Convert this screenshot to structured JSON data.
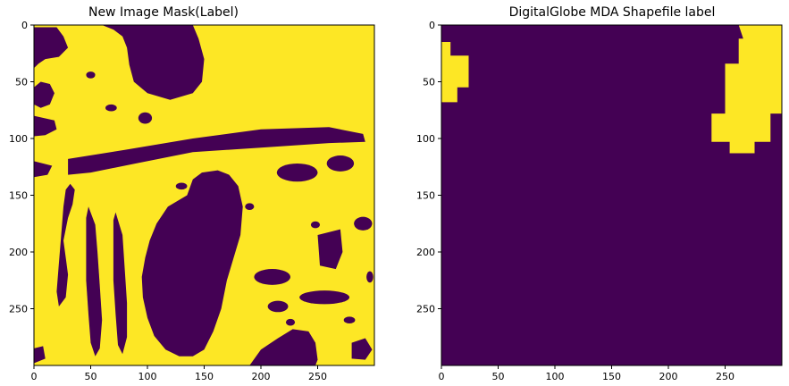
{
  "chart_data": [
    {
      "type": "heatmap",
      "title": "New Image Mask(Label)",
      "xlabel": "",
      "ylabel": "",
      "xlim": [
        0,
        300
      ],
      "ylim": [
        300,
        0
      ],
      "x_ticks": [
        0,
        50,
        100,
        150,
        200,
        250
      ],
      "y_ticks": [
        0,
        50,
        100,
        150,
        200,
        250
      ],
      "colormap": {
        "low": "#440154",
        "high": "#fde725"
      },
      "background_value": 1,
      "mask_regions_value0": [
        {
          "shape": "poly",
          "points": [
            [
              60,
              0
            ],
            [
              140,
              0
            ],
            [
              145,
              12
            ],
            [
              150,
              30
            ],
            [
              148,
              50
            ],
            [
              140,
              60
            ],
            [
              120,
              66
            ],
            [
              100,
              60
            ],
            [
              88,
              50
            ],
            [
              84,
              35
            ],
            [
              82,
              20
            ],
            [
              78,
              10
            ],
            [
              70,
              4
            ]
          ]
        },
        {
          "shape": "poly",
          "points": [
            [
              0,
              2
            ],
            [
              20,
              2
            ],
            [
              26,
              10
            ],
            [
              30,
              20
            ],
            [
              22,
              28
            ],
            [
              10,
              30
            ],
            [
              4,
              34
            ],
            [
              0,
              38
            ]
          ]
        },
        {
          "shape": "poly",
          "points": [
            [
              0,
              55
            ],
            [
              6,
              50
            ],
            [
              14,
              52
            ],
            [
              18,
              60
            ],
            [
              14,
              70
            ],
            [
              6,
              73
            ],
            [
              0,
              70
            ]
          ]
        },
        {
          "shape": "poly",
          "points": [
            [
              0,
              80
            ],
            [
              18,
              84
            ],
            [
              20,
              92
            ],
            [
              10,
              97
            ],
            [
              0,
              98
            ]
          ]
        },
        {
          "shape": "poly",
          "points": [
            [
              30,
              118
            ],
            [
              80,
              110
            ],
            [
              140,
              100
            ],
            [
              200,
              92
            ],
            [
              260,
              90
            ],
            [
              290,
              96
            ],
            [
              292,
              103
            ],
            [
              260,
              104
            ],
            [
              200,
              108
            ],
            [
              140,
              112
            ],
            [
              90,
              122
            ],
            [
              50,
              130
            ],
            [
              30,
              132
            ]
          ]
        },
        {
          "shape": "poly",
          "points": [
            [
              0,
              120
            ],
            [
              16,
              124
            ],
            [
              12,
              132
            ],
            [
              0,
              134
            ]
          ]
        },
        {
          "shape": "poly",
          "points": [
            [
              135,
              150
            ],
            [
              140,
              136
            ],
            [
              148,
              130
            ],
            [
              162,
              128
            ],
            [
              172,
              132
            ],
            [
              180,
              142
            ],
            [
              184,
              160
            ],
            [
              182,
              185
            ],
            [
              176,
              205
            ],
            [
              170,
              225
            ],
            [
              165,
              250
            ],
            [
              158,
              270
            ],
            [
              150,
              286
            ],
            [
              140,
              292
            ],
            [
              128,
              292
            ],
            [
              116,
              286
            ],
            [
              106,
              274
            ],
            [
              100,
              258
            ],
            [
              96,
              240
            ],
            [
              95,
              222
            ],
            [
              98,
              205
            ],
            [
              102,
              190
            ],
            [
              108,
              175
            ],
            [
              118,
              160
            ]
          ]
        },
        {
          "shape": "poly",
          "points": [
            [
              190,
              300
            ],
            [
              200,
              286
            ],
            [
              215,
              276
            ],
            [
              228,
              268
            ],
            [
              242,
              270
            ],
            [
              248,
              280
            ],
            [
              250,
              295
            ],
            [
              248,
              300
            ]
          ]
        },
        {
          "shape": "poly",
          "points": [
            [
              32,
              140
            ],
            [
              36,
              145
            ],
            [
              34,
              158
            ],
            [
              30,
              170
            ],
            [
              26,
              190
            ],
            [
              28,
              205
            ],
            [
              30,
              220
            ],
            [
              28,
              240
            ],
            [
              22,
              248
            ],
            [
              20,
              235
            ],
            [
              22,
              210
            ],
            [
              24,
              185
            ],
            [
              26,
              160
            ],
            [
              28,
              145
            ]
          ]
        },
        {
          "shape": "poly",
          "points": [
            [
              48,
              160
            ],
            [
              54,
              176
            ],
            [
              56,
              200
            ],
            [
              58,
              230
            ],
            [
              60,
              260
            ],
            [
              58,
              285
            ],
            [
              54,
              292
            ],
            [
              50,
              280
            ],
            [
              48,
              255
            ],
            [
              46,
              225
            ],
            [
              46,
              195
            ],
            [
              46,
              170
            ]
          ]
        },
        {
          "shape": "poly",
          "points": [
            [
              72,
              165
            ],
            [
              78,
              185
            ],
            [
              80,
              215
            ],
            [
              82,
              245
            ],
            [
              82,
              275
            ],
            [
              78,
              290
            ],
            [
              74,
              282
            ],
            [
              72,
              255
            ],
            [
              70,
              225
            ],
            [
              70,
              195
            ],
            [
              70,
              172
            ]
          ]
        },
        {
          "shape": "poly",
          "points": [
            [
              0,
              285
            ],
            [
              8,
              283
            ],
            [
              10,
              294
            ],
            [
              0,
              298
            ]
          ]
        },
        {
          "shape": "poly",
          "points": [
            [
              280,
              280
            ],
            [
              292,
              276
            ],
            [
              298,
              286
            ],
            [
              292,
              295
            ],
            [
              280,
              294
            ]
          ]
        },
        {
          "shape": "poly",
          "points": [
            [
              250,
              185
            ],
            [
              270,
              180
            ],
            [
              272,
              200
            ],
            [
              266,
              215
            ],
            [
              252,
              212
            ]
          ]
        },
        {
          "shape": "ellipse",
          "cx": 210,
          "cy": 222,
          "rx": 16,
          "ry": 7
        },
        {
          "shape": "ellipse",
          "cx": 256,
          "cy": 240,
          "rx": 22,
          "ry": 6
        },
        {
          "shape": "ellipse",
          "cx": 215,
          "cy": 248,
          "rx": 9,
          "ry": 5
        },
        {
          "shape": "ellipse",
          "cx": 290,
          "cy": 175,
          "rx": 8,
          "ry": 6
        },
        {
          "shape": "ellipse",
          "cx": 232,
          "cy": 130,
          "rx": 18,
          "ry": 8
        },
        {
          "shape": "ellipse",
          "cx": 270,
          "cy": 122,
          "rx": 12,
          "ry": 7
        },
        {
          "shape": "ellipse",
          "cx": 98,
          "cy": 82,
          "rx": 6,
          "ry": 5
        },
        {
          "shape": "ellipse",
          "cx": 68,
          "cy": 73,
          "rx": 5,
          "ry": 3
        },
        {
          "shape": "ellipse",
          "cx": 50,
          "cy": 44,
          "rx": 4,
          "ry": 3
        },
        {
          "shape": "ellipse",
          "cx": 248,
          "cy": 176,
          "rx": 4,
          "ry": 3
        },
        {
          "shape": "ellipse",
          "cx": 226,
          "cy": 262,
          "rx": 4,
          "ry": 3
        },
        {
          "shape": "ellipse",
          "cx": 278,
          "cy": 260,
          "rx": 5,
          "ry": 3
        },
        {
          "shape": "ellipse",
          "cx": 190,
          "cy": 160,
          "rx": 4,
          "ry": 3
        },
        {
          "shape": "ellipse",
          "cx": 130,
          "cy": 142,
          "rx": 5,
          "ry": 3
        },
        {
          "shape": "ellipse",
          "cx": 296,
          "cy": 222,
          "rx": 3,
          "ry": 5
        }
      ],
      "mask_regions_value1": []
    },
    {
      "type": "heatmap",
      "title": "DigitalGlobe MDA Shapefile label",
      "xlabel": "",
      "ylabel": "",
      "xlim": [
        0,
        300
      ],
      "ylim": [
        300,
        0
      ],
      "x_ticks": [
        0,
        50,
        100,
        150,
        200,
        250
      ],
      "y_ticks": [
        0,
        50,
        100,
        150,
        200,
        250
      ],
      "colormap": {
        "low": "#440154",
        "high": "#fde725"
      },
      "background_value": 0,
      "mask_regions_value0": [],
      "mask_regions_value1": [
        {
          "shape": "poly",
          "points": [
            [
              0,
              15
            ],
            [
              8,
              15
            ],
            [
              8,
              27
            ],
            [
              24,
              27
            ],
            [
              24,
              55
            ],
            [
              14,
              55
            ],
            [
              14,
              68
            ],
            [
              0,
              68
            ]
          ]
        },
        {
          "shape": "poly",
          "points": [
            [
              262,
              0
            ],
            [
              300,
              0
            ],
            [
              300,
              78
            ],
            [
              290,
              78
            ],
            [
              290,
              103
            ],
            [
              276,
              103
            ],
            [
              276,
              113
            ],
            [
              254,
              113
            ],
            [
              254,
              103
            ],
            [
              238,
              103
            ],
            [
              238,
              78
            ],
            [
              250,
              78
            ],
            [
              250,
              34
            ],
            [
              262,
              34
            ],
            [
              262,
              12
            ],
            [
              266,
              12
            ]
          ]
        }
      ]
    }
  ]
}
